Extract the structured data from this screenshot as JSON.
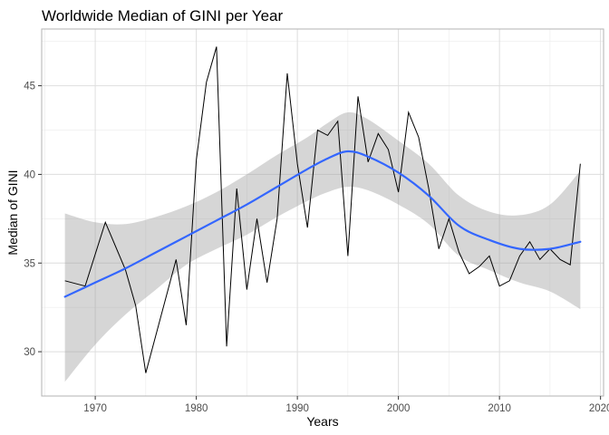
{
  "chart_data": {
    "type": "line",
    "title": "Worldwide Median of GINI per Year",
    "xlabel": "Years",
    "ylabel": "Median of GINI",
    "xlim": [
      1964.7,
      2020.3
    ],
    "ylim": [
      27.5,
      48.2
    ],
    "x_ticks": [
      1970,
      1980,
      1990,
      2000,
      2010,
      2020
    ],
    "y_ticks": [
      30,
      35,
      40,
      45
    ],
    "grid": true,
    "legend": "none",
    "series": [
      {
        "kind": "line",
        "color": "#000000",
        "points": [
          [
            1967,
            34.0
          ],
          [
            1969,
            33.7
          ],
          [
            1971,
            37.3
          ],
          [
            1973,
            34.6
          ],
          [
            1974,
            32.6
          ],
          [
            1975,
            28.8
          ],
          [
            1978,
            35.2
          ],
          [
            1979,
            31.5
          ],
          [
            1980,
            40.8
          ],
          [
            1981,
            45.2
          ],
          [
            1982,
            47.2
          ],
          [
            1983,
            30.3
          ],
          [
            1984,
            39.2
          ],
          [
            1985,
            33.5
          ],
          [
            1986,
            37.5
          ],
          [
            1987,
            33.9
          ],
          [
            1988,
            37.5
          ],
          [
            1989,
            45.7
          ],
          [
            1990,
            40.6
          ],
          [
            1991,
            37.0
          ],
          [
            1992,
            42.5
          ],
          [
            1993,
            42.2
          ],
          [
            1994,
            43.0
          ],
          [
            1995,
            35.4
          ],
          [
            1996,
            44.4
          ],
          [
            1997,
            40.7
          ],
          [
            1998,
            42.3
          ],
          [
            1999,
            41.4
          ],
          [
            2000,
            39.0
          ],
          [
            2001,
            43.5
          ],
          [
            2002,
            42.1
          ],
          [
            2003,
            39.2
          ],
          [
            2004,
            35.8
          ],
          [
            2005,
            37.5
          ],
          [
            2006,
            35.6
          ],
          [
            2007,
            34.4
          ],
          [
            2008,
            34.8
          ],
          [
            2009,
            35.4
          ],
          [
            2010,
            33.7
          ],
          [
            2011,
            34.0
          ],
          [
            2012,
            35.4
          ],
          [
            2013,
            36.2
          ],
          [
            2014,
            35.2
          ],
          [
            2015,
            35.8
          ],
          [
            2016,
            35.2
          ],
          [
            2017,
            34.9
          ],
          [
            2018,
            40.6
          ]
        ]
      },
      {
        "kind": "smooth",
        "color": "#3366FF",
        "band_color": "#999999",
        "points": [
          {
            "x": 1967,
            "y": 33.1,
            "lo": 28.3,
            "hi": 37.8
          },
          {
            "x": 1970,
            "y": 33.9,
            "lo": 30.4,
            "hi": 37.3
          },
          {
            "x": 1973,
            "y": 34.7,
            "lo": 32.1,
            "hi": 37.2
          },
          {
            "x": 1976,
            "y": 35.6,
            "lo": 33.5,
            "hi": 37.6
          },
          {
            "x": 1979,
            "y": 36.5,
            "lo": 34.9,
            "hi": 38.2
          },
          {
            "x": 1982,
            "y": 37.4,
            "lo": 35.8,
            "hi": 39.0
          },
          {
            "x": 1985,
            "y": 38.3,
            "lo": 36.6,
            "hi": 40.0
          },
          {
            "x": 1988,
            "y": 39.3,
            "lo": 37.6,
            "hi": 41.1
          },
          {
            "x": 1991,
            "y": 40.3,
            "lo": 38.5,
            "hi": 42.1
          },
          {
            "x": 1993,
            "y": 40.9,
            "lo": 39.0,
            "hi": 42.9
          },
          {
            "x": 1995,
            "y": 41.3,
            "lo": 39.3,
            "hi": 43.5
          },
          {
            "x": 1997,
            "y": 41.0,
            "lo": 39.1,
            "hi": 43.1
          },
          {
            "x": 2000,
            "y": 40.1,
            "lo": 38.3,
            "hi": 41.9
          },
          {
            "x": 2003,
            "y": 38.8,
            "lo": 37.2,
            "hi": 40.6
          },
          {
            "x": 2006,
            "y": 37.1,
            "lo": 35.4,
            "hi": 38.8
          },
          {
            "x": 2009,
            "y": 36.3,
            "lo": 34.6,
            "hi": 37.9
          },
          {
            "x": 2012,
            "y": 35.8,
            "lo": 33.9,
            "hi": 37.7
          },
          {
            "x": 2015,
            "y": 35.8,
            "lo": 33.4,
            "hi": 38.3
          },
          {
            "x": 2018,
            "y": 36.2,
            "lo": 32.4,
            "hi": 40.2
          }
        ]
      }
    ]
  }
}
